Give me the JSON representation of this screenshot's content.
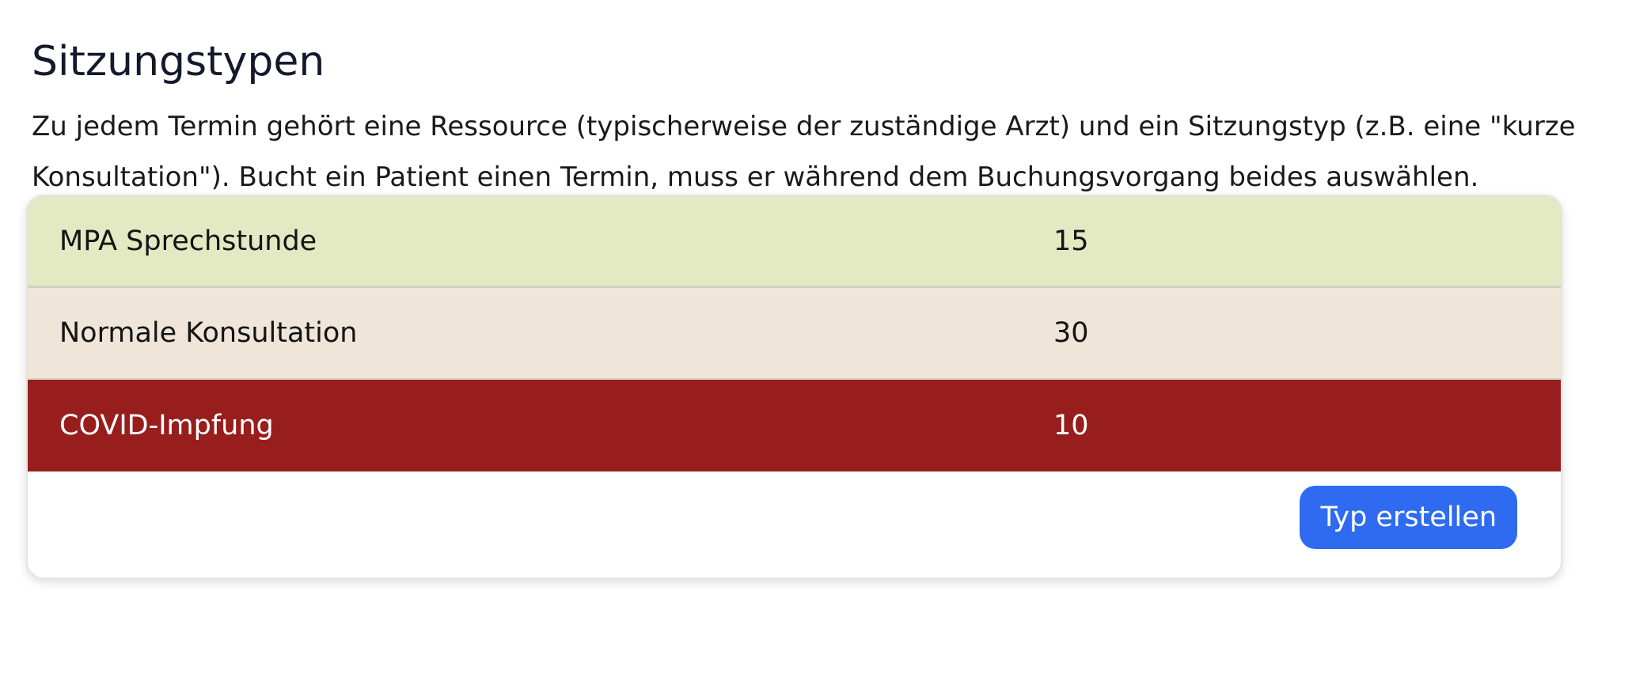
{
  "header": {
    "title": "Sitzungstypen",
    "intro": "Zu jedem Termin gehört eine Ressource (typischerweise der zuständige Arzt) und ein Sitzungstyp (z.B. eine \"kurze Konsultation\"). Bucht ein Patient einen Termin, muss er während dem Buchungsvorgang beides auswählen."
  },
  "session_types": [
    {
      "name": "MPA Sprechstunde",
      "duration": "15",
      "color": "#e2e9c3"
    },
    {
      "name": "Normale Konsultation",
      "duration": "30",
      "color": "#efe5d9"
    },
    {
      "name": "COVID-Impfung",
      "duration": "10",
      "color": "#981d1d"
    }
  ],
  "actions": {
    "create_label": "Typ erstellen"
  },
  "colors": {
    "accent": "#2f6bf0",
    "title": "#14192b"
  }
}
